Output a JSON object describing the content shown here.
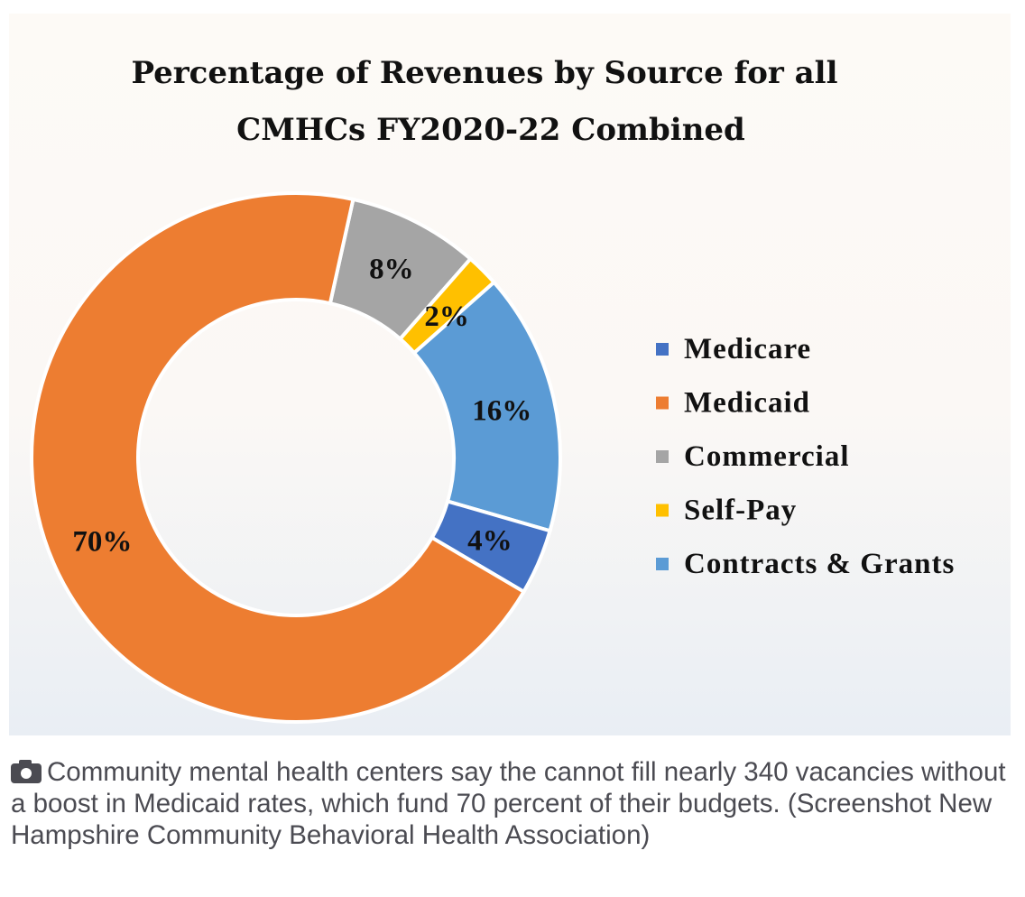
{
  "chart_data": {
    "type": "pie",
    "subtype": "donut",
    "title_lines": [
      "Percentage of  Revenues by Source for all",
      "CMHCs FY2020-22 Combined"
    ],
    "categories": [
      "Medicare",
      "Medicaid",
      "Commercial",
      "Self-Pay",
      "Contracts & Grants"
    ],
    "values": [
      4,
      70,
      8,
      2,
      16
    ],
    "data_labels": [
      "4%",
      "70%",
      "8%",
      "2%",
      "16%"
    ],
    "colors": [
      "#4472c4",
      "#ed7d31",
      "#a5a5a5",
      "#ffc000",
      "#5b9bd5"
    ],
    "legend_position": "right"
  },
  "caption": {
    "icon": "camera-icon",
    "text": "Community mental health centers say the cannot fill nearly 340 vacancies without a boost in Medicaid rates, which fund 70 percent of their budgets. (Screenshot New Hampshire Community Behavioral Health Association)"
  }
}
